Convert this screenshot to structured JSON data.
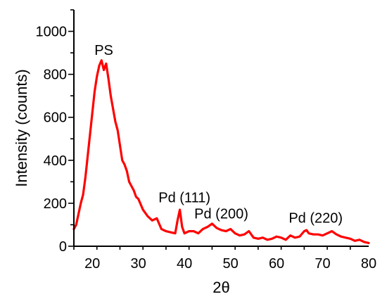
{
  "chart_data": {
    "type": "line",
    "title": "",
    "xlabel": "2θ",
    "ylabel": "Intensity (counts)",
    "xlim": [
      16,
      80
    ],
    "ylim": [
      0,
      1100
    ],
    "xticks": [
      20,
      30,
      40,
      50,
      60,
      70,
      80
    ],
    "yticks": [
      0,
      200,
      400,
      600,
      800,
      1000
    ],
    "grid": false,
    "legend": "none",
    "line_color": "#ff0000",
    "series": [
      {
        "x": [
          16,
          16.5,
          17,
          17.5,
          18,
          18.5,
          19,
          19.5,
          20,
          20.5,
          21,
          21.5,
          22,
          22.5,
          23,
          23.5,
          24,
          24.5,
          25,
          25.5,
          26,
          26.5,
          27,
          27.5,
          28,
          28.5,
          29,
          29.5,
          30,
          31,
          32,
          33,
          34,
          35,
          36,
          37,
          38,
          38.5,
          39,
          39.5,
          40,
          41,
          42,
          43,
          44,
          45,
          46,
          47,
          48,
          49,
          50,
          51,
          52,
          53,
          54,
          55,
          56,
          57,
          58,
          59,
          60,
          61,
          62,
          63,
          64,
          65,
          66,
          66.5,
          67,
          68,
          69,
          70,
          71,
          72,
          73,
          74,
          75,
          76,
          77,
          78,
          79,
          80
        ],
        "y": [
          80,
          100,
          150,
          200,
          240,
          320,
          420,
          520,
          620,
          720,
          790,
          840,
          865,
          820,
          850,
          780,
          700,
          640,
          580,
          540,
          470,
          400,
          380,
          350,
          300,
          280,
          260,
          230,
          220,
          170,
          140,
          120,
          130,
          80,
          70,
          65,
          60,
          120,
          170,
          90,
          60,
          70,
          70,
          60,
          80,
          90,
          105,
          85,
          75,
          70,
          80,
          60,
          50,
          55,
          70,
          40,
          35,
          40,
          30,
          35,
          45,
          40,
          30,
          50,
          40,
          45,
          70,
          75,
          60,
          55,
          55,
          50,
          60,
          70,
          55,
          45,
          40,
          35,
          25,
          30,
          20,
          15
        ]
      }
    ],
    "annotations": [
      {
        "text": "PS",
        "x": 22.5,
        "y": 890
      },
      {
        "text": "Pd (111)",
        "x": 40,
        "y": 205
      },
      {
        "text": "Pd (200)",
        "x": 48,
        "y": 130
      },
      {
        "text": "Pd (220)",
        "x": 68.5,
        "y": 110
      }
    ]
  }
}
